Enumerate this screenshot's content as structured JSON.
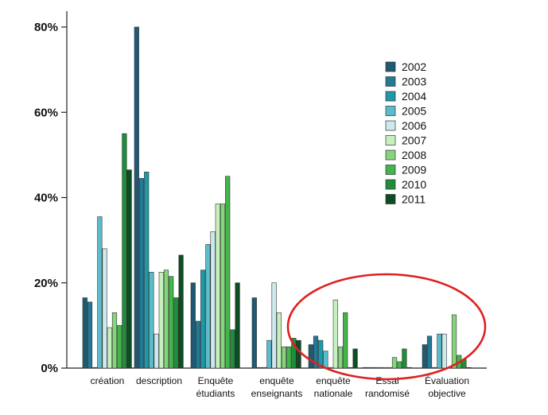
{
  "chart_data": {
    "type": "bar",
    "title": "",
    "xlabel": "",
    "ylabel": "",
    "ylim": [
      0,
      80
    ],
    "yticks": [
      {
        "value": 0,
        "label": "0%"
      },
      {
        "value": 20,
        "label": "20%"
      },
      {
        "value": 40,
        "label": "40%"
      },
      {
        "value": 60,
        "label": "60%"
      },
      {
        "value": 80,
        "label": "80%"
      }
    ],
    "grid": false,
    "legend_position": "top-right",
    "categories": [
      {
        "lines": [
          "création"
        ]
      },
      {
        "lines": [
          "description"
        ]
      },
      {
        "lines": [
          "Enquête",
          "étudiants"
        ]
      },
      {
        "lines": [
          "enquête",
          "enseignants"
        ]
      },
      {
        "lines": [
          "enquête",
          "nationale"
        ]
      },
      {
        "lines": [
          "Essai",
          "randomisé"
        ]
      },
      {
        "lines": [
          "Évaluation",
          "objective"
        ]
      }
    ],
    "series": [
      {
        "name": "2002",
        "color": "#1f5a73",
        "values": [
          16.5,
          80,
          20,
          16.5,
          5.5,
          0,
          5.5
        ]
      },
      {
        "name": "2003",
        "color": "#237a96",
        "values": [
          15.5,
          44.5,
          11,
          0,
          7.5,
          0,
          7.5
        ]
      },
      {
        "name": "2004",
        "color": "#1c9aa8",
        "values": [
          0,
          46,
          23,
          0,
          6.5,
          0,
          0
        ]
      },
      {
        "name": "2005",
        "color": "#5bbccb",
        "values": [
          35.5,
          22.5,
          29,
          6.5,
          4,
          0,
          8
        ]
      },
      {
        "name": "2006",
        "color": "#cce9ee",
        "values": [
          28,
          8,
          32,
          20,
          0,
          0,
          8
        ]
      },
      {
        "name": "2007",
        "color": "#c7f0bf",
        "values": [
          9.5,
          22.5,
          38.5,
          13,
          16,
          0,
          0
        ]
      },
      {
        "name": "2008",
        "color": "#86d47e",
        "values": [
          13,
          23,
          38.5,
          5,
          5,
          2.5,
          12.5
        ]
      },
      {
        "name": "2009",
        "color": "#43b54a",
        "values": [
          10,
          21.5,
          45,
          5,
          13,
          1.5,
          3
        ]
      },
      {
        "name": "2010",
        "color": "#1f8e3b",
        "values": [
          55,
          16.5,
          9,
          7,
          0,
          4.5,
          2
        ]
      },
      {
        "name": "2011",
        "color": "#0c4d24",
        "values": [
          46.5,
          26.5,
          20,
          6.5,
          4.5,
          0,
          0
        ]
      }
    ],
    "annotations": [
      {
        "type": "ellipse",
        "color": "#e0201f",
        "covers_categories": [
          "enquête nationale",
          "Essai randomisé",
          "Évaluation objective"
        ]
      }
    ]
  }
}
